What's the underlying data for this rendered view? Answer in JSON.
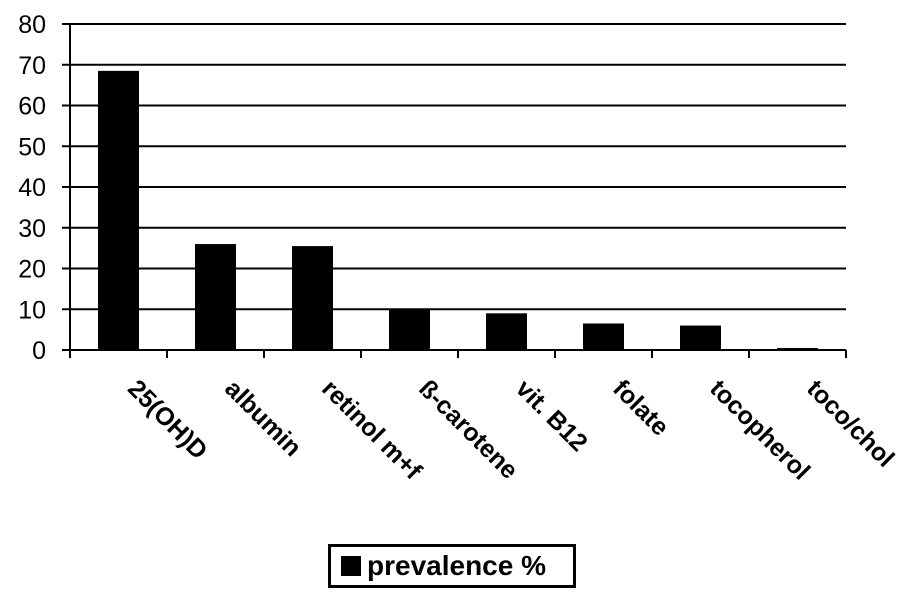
{
  "chart_data": {
    "type": "bar",
    "title": "",
    "xlabel": "",
    "ylabel": "",
    "categories": [
      "25(OH)D",
      "albumin",
      "retinol m+f",
      "ß-carotene",
      "vit. B12",
      "folate",
      "tocopherol",
      "toco/chol"
    ],
    "series": [
      {
        "name": "prevalence %",
        "values": [
          68.5,
          26,
          25.5,
          10,
          9,
          6.5,
          6,
          0.5
        ],
        "color": "#000000"
      }
    ],
    "ylim": [
      0,
      80
    ],
    "yticks": [
      0,
      10,
      20,
      30,
      40,
      50,
      60,
      70,
      80
    ],
    "grid": true,
    "legend_position": "bottom"
  }
}
